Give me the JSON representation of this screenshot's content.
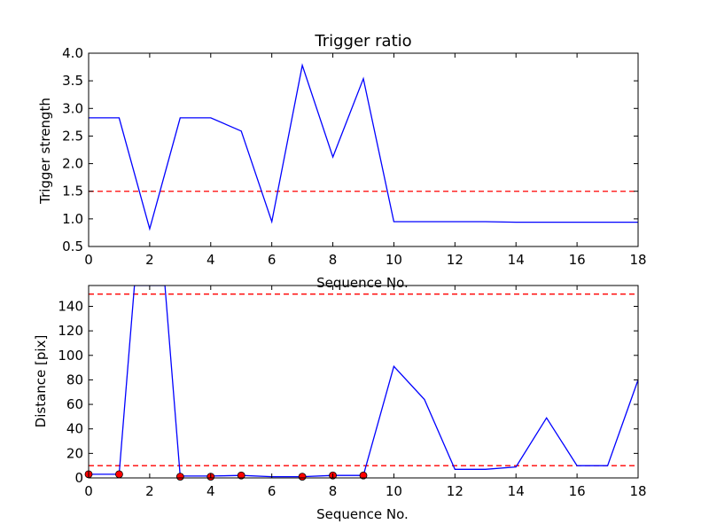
{
  "chart_data": [
    {
      "type": "line",
      "title": "Trigger ratio",
      "xlabel": "Sequence No.",
      "ylabel": "Trigger strength",
      "xlim": [
        0,
        18
      ],
      "ylim": [
        0.5,
        4.0
      ],
      "xticks": [
        0,
        2,
        4,
        6,
        8,
        10,
        12,
        14,
        16,
        18
      ],
      "yticks": [
        0.5,
        1.0,
        1.5,
        2.0,
        2.5,
        3.0,
        3.5,
        4.0
      ],
      "ytick_labels": [
        "0.5",
        "1.0",
        "1.5",
        "2.0",
        "2.5",
        "3.0",
        "3.5",
        "4.0"
      ],
      "grid": false,
      "series": [
        {
          "color": "#0000ff",
          "x": [
            0,
            1,
            2,
            3,
            4,
            5,
            6,
            7,
            8,
            9,
            10,
            11,
            12,
            13,
            14,
            15,
            16,
            17,
            18
          ],
          "values": [
            2.83,
            2.83,
            0.82,
            2.83,
            2.83,
            2.59,
            0.95,
            3.78,
            2.12,
            3.54,
            0.95,
            0.95,
            0.95,
            0.95,
            0.94,
            0.94,
            0.94,
            0.94,
            0.94
          ]
        }
      ],
      "reference_lines": [
        {
          "y": 1.5,
          "color": "#ff0000",
          "style": "dashed"
        }
      ]
    },
    {
      "type": "line",
      "title": "",
      "xlabel": "Sequence No.",
      "ylabel": "Distance [pix]",
      "xlim": [
        0,
        18
      ],
      "ylim": [
        0,
        157
      ],
      "xticks": [
        0,
        2,
        4,
        6,
        8,
        10,
        12,
        14,
        16,
        18
      ],
      "yticks": [
        0,
        20,
        40,
        60,
        80,
        100,
        120,
        140
      ],
      "ytick_labels": [
        "0",
        "20",
        "40",
        "60",
        "80",
        "100",
        "120",
        "140"
      ],
      "grid": false,
      "series": [
        {
          "color": "#0000ff",
          "x": [
            0,
            1,
            1.5,
            2.5,
            3,
            4,
            5,
            6,
            7,
            8,
            9,
            10,
            11,
            12,
            13,
            14,
            15,
            16,
            17,
            18
          ],
          "values": [
            3,
            3,
            157,
            157,
            1.5,
            1.5,
            2,
            1,
            1,
            2,
            2,
            91,
            64,
            7,
            7,
            9,
            49,
            10,
            10,
            80
          ]
        }
      ],
      "markers": {
        "color": "#ff0000",
        "x": [
          0,
          1,
          3,
          4,
          5,
          7,
          8,
          9
        ],
        "values": [
          3,
          3,
          1,
          1,
          2,
          1,
          2,
          2
        ]
      },
      "reference_lines": [
        {
          "y": 150,
          "color": "#ff0000",
          "style": "dashed"
        },
        {
          "y": 10,
          "color": "#ff0000",
          "style": "dashed"
        }
      ]
    }
  ]
}
